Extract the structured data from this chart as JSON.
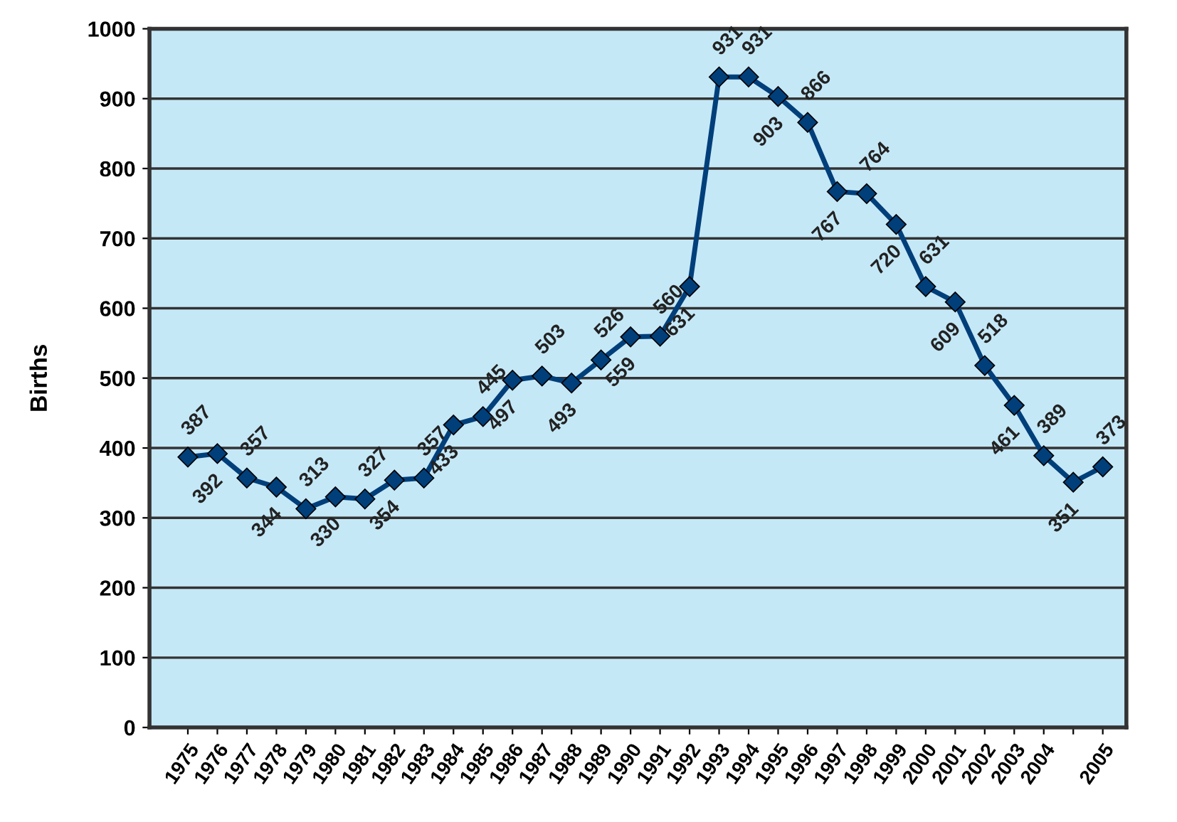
{
  "chart_data": {
    "type": "line",
    "ylabel": "Births",
    "categories": [
      "1975",
      "1976",
      "1977",
      "1978",
      "1979",
      "1980",
      "1981",
      "1982",
      "1983",
      "1984",
      "1985",
      "1986",
      "1987",
      "1988",
      "1989",
      "1990",
      "1991",
      "1992",
      "1993",
      "1994",
      "1995",
      "1996",
      "1997",
      "1998",
      "1999",
      "2000",
      "2001",
      "2002",
      "2003",
      "2004",
      null,
      "2005"
    ],
    "series": [
      {
        "color": "#003f7a",
        "values": [
          387,
          392,
          357,
          344,
          313,
          330,
          327,
          354,
          357,
          433,
          445,
          497,
          503,
          493,
          526,
          559,
          560,
          631,
          931,
          931,
          903,
          866,
          767,
          764,
          720,
          631,
          609,
          518,
          461,
          389,
          351,
          373
        ]
      }
    ],
    "ylim": [
      0,
      1000
    ],
    "yticks": [
      0,
      100,
      200,
      300,
      400,
      500,
      600,
      700,
      800,
      900,
      1000
    ],
    "grid": "y",
    "marker": "diamond",
    "data_labels": true
  }
}
